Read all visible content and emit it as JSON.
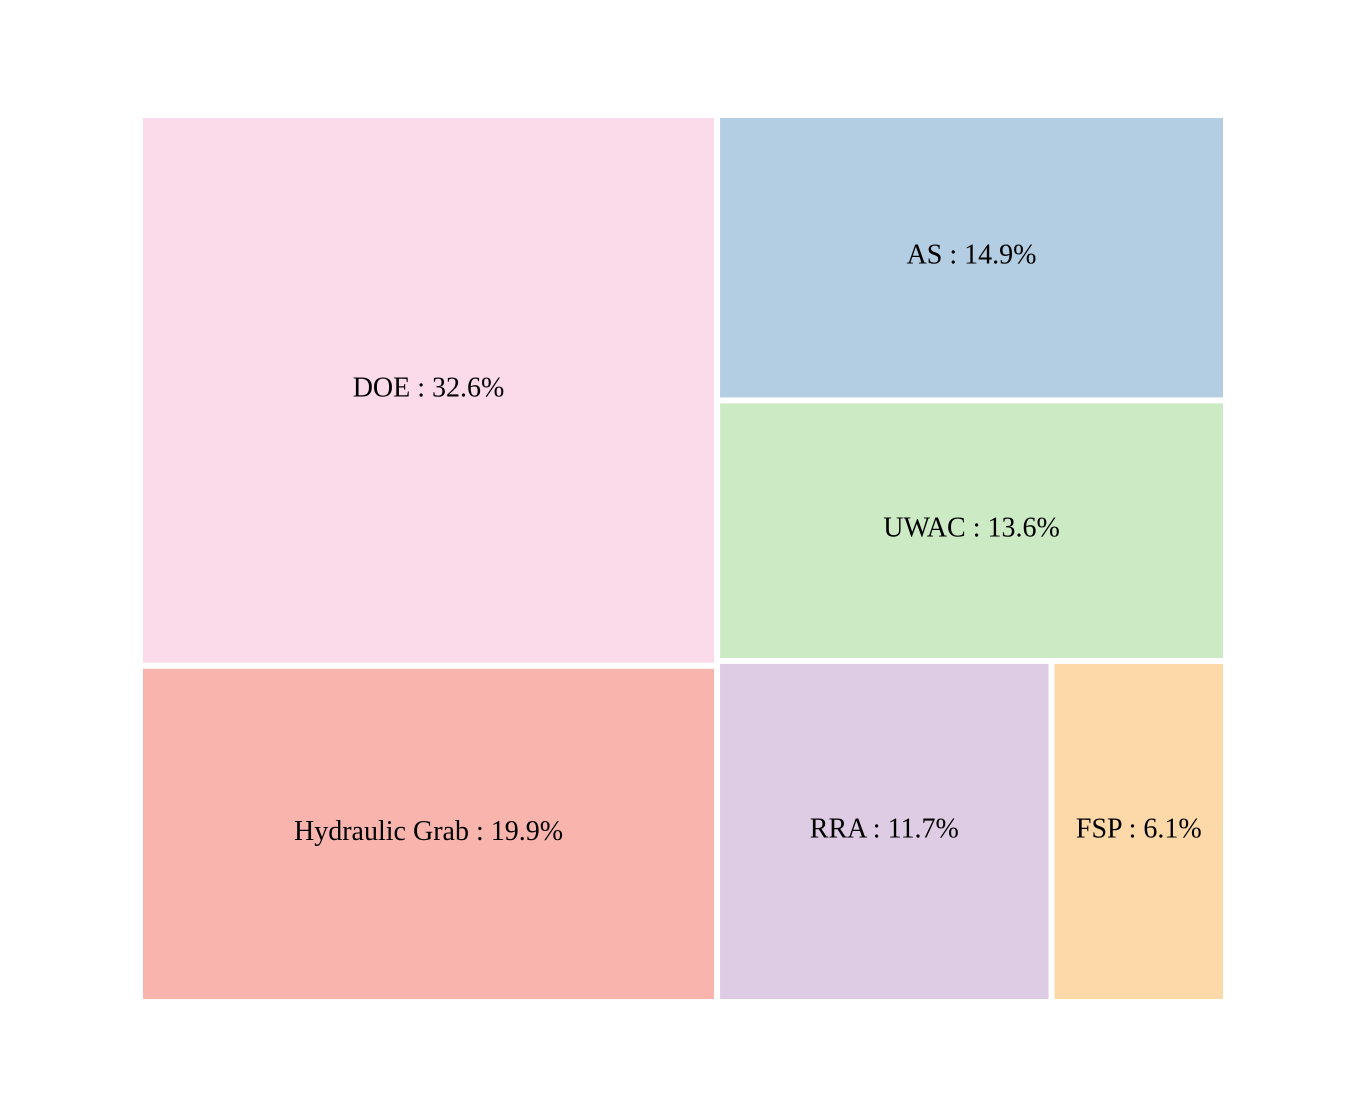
{
  "chart_data": {
    "type": "treemap",
    "title": "",
    "separator": " : ",
    "items": [
      {
        "label": "DOE",
        "value": 32.6,
        "value_text": "32.6%",
        "color": "#fbdaea"
      },
      {
        "label": "Hydraulic Grab",
        "value": 19.9,
        "value_text": "19.9%",
        "color": "#f9b4ae"
      },
      {
        "label": "AS",
        "value": 14.9,
        "value_text": "14.9%",
        "color": "#b3cde3"
      },
      {
        "label": "UWAC",
        "value": 13.6,
        "value_text": "13.6%",
        "color": "#ccebc5"
      },
      {
        "label": "RRA",
        "value": 11.7,
        "value_text": "11.7%",
        "color": "#decbe4"
      },
      {
        "label": "FSP",
        "value": 6.1,
        "value_text": "6.1%",
        "color": "#fdd8a8"
      }
    ],
    "legend": "none",
    "grid": false
  }
}
